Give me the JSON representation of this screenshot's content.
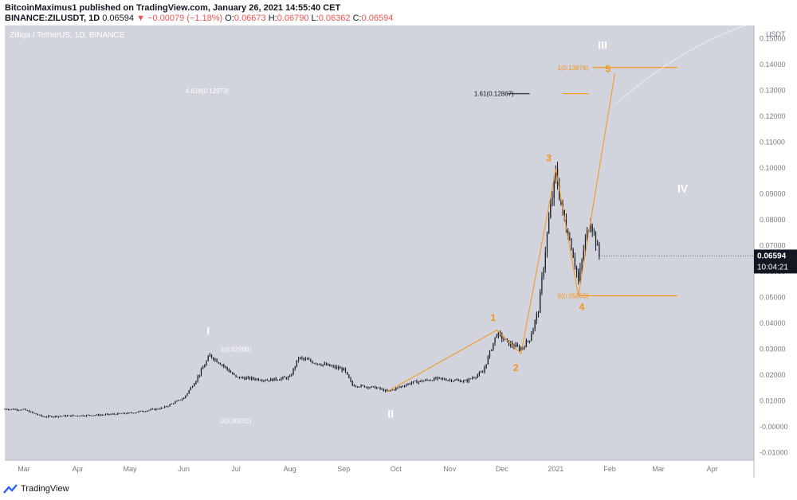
{
  "header": {
    "publisher_line": "BitcoinMaximus1 published on TradingView.com, January 26, 2021 14:55:40 CET",
    "symbol": "BINANCE:ZILUSDT, 1D",
    "last": "0.06594",
    "change": "−0.00079 (−1.18%)",
    "ohlc": [
      {
        "label": "O:",
        "value": "0.06673"
      },
      {
        "label": "H:",
        "value": "0.06790"
      },
      {
        "label": "L:",
        "value": "0.06362"
      },
      {
        "label": "C:",
        "value": "0.06594"
      }
    ]
  },
  "footer": {
    "brand": "TradingView"
  },
  "chart_data": {
    "type": "candlestick",
    "watermark": "Zilliqa / TetherUS, 1D, BINANCE",
    "currency_label": "USDT",
    "y_ticks": [
      "-0.01000",
      "-0.00000",
      "0.01000",
      "0.02000",
      "0.03000",
      "0.04000",
      "0.05000",
      "0.06000",
      "0.07000",
      "0.08000",
      "0.09000",
      "0.10000",
      "0.11000",
      "0.12000",
      "0.13000",
      "0.14000",
      "0.15000"
    ],
    "y_tick_values": [
      -0.01,
      0,
      0.01,
      0.02,
      0.03,
      0.04,
      0.05,
      0.06,
      0.07,
      0.08,
      0.09,
      0.1,
      0.11,
      0.12,
      0.13,
      0.14,
      0.15
    ],
    "ylim": [
      -0.013,
      0.155
    ],
    "x_start": "2020-02-19",
    "x_end": "2021-04-25",
    "x_ticks": [
      {
        "label": "Mar",
        "date": "2020-03-01"
      },
      {
        "label": "Apr",
        "date": "2020-04-01"
      },
      {
        "label": "May",
        "date": "2020-05-01"
      },
      {
        "label": "Jun",
        "date": "2020-06-01"
      },
      {
        "label": "Jul",
        "date": "2020-07-01"
      },
      {
        "label": "Aug",
        "date": "2020-08-01"
      },
      {
        "label": "Sep",
        "date": "2020-09-01"
      },
      {
        "label": "Oct",
        "date": "2020-10-01"
      },
      {
        "label": "Nov",
        "date": "2020-11-01"
      },
      {
        "label": "Dec",
        "date": "2020-12-01"
      },
      {
        "label": "2021",
        "date": "2021-01-01"
      },
      {
        "label": "Feb",
        "date": "2021-02-01"
      },
      {
        "label": "Mar",
        "date": "2021-03-01"
      },
      {
        "label": "Apr",
        "date": "2021-04-01"
      }
    ],
    "price_path": [
      {
        "date": "2020-02-19",
        "price": 0.0068
      },
      {
        "date": "2020-03-01",
        "price": 0.0065
      },
      {
        "date": "2020-03-12",
        "price": 0.0038
      },
      {
        "date": "2020-03-20",
        "price": 0.004
      },
      {
        "date": "2020-04-15",
        "price": 0.0045
      },
      {
        "date": "2020-05-01",
        "price": 0.0052
      },
      {
        "date": "2020-05-20",
        "price": 0.0072
      },
      {
        "date": "2020-06-01",
        "price": 0.011
      },
      {
        "date": "2020-06-08",
        "price": 0.018
      },
      {
        "date": "2020-06-16",
        "price": 0.0275
      },
      {
        "date": "2020-06-23",
        "price": 0.024
      },
      {
        "date": "2020-07-01",
        "price": 0.019
      },
      {
        "date": "2020-07-20",
        "price": 0.018
      },
      {
        "date": "2020-08-01",
        "price": 0.019
      },
      {
        "date": "2020-08-06",
        "price": 0.0265
      },
      {
        "date": "2020-08-20",
        "price": 0.024
      },
      {
        "date": "2020-09-01",
        "price": 0.022
      },
      {
        "date": "2020-09-06",
        "price": 0.016
      },
      {
        "date": "2020-09-20",
        "price": 0.015
      },
      {
        "date": "2020-09-26",
        "price": 0.0135
      },
      {
        "date": "2020-10-10",
        "price": 0.017
      },
      {
        "date": "2020-10-25",
        "price": 0.0185
      },
      {
        "date": "2020-11-10",
        "price": 0.0175
      },
      {
        "date": "2020-11-20",
        "price": 0.021
      },
      {
        "date": "2020-11-28",
        "price": 0.036
      },
      {
        "date": "2020-12-05",
        "price": 0.032
      },
      {
        "date": "2020-12-12",
        "price": 0.03
      },
      {
        "date": "2020-12-17",
        "price": 0.034
      },
      {
        "date": "2020-12-22",
        "price": 0.045
      },
      {
        "date": "2020-12-28",
        "price": 0.08
      },
      {
        "date": "2021-01-01",
        "price": 0.098
      },
      {
        "date": "2021-01-05",
        "price": 0.082
      },
      {
        "date": "2021-01-10",
        "price": 0.07
      },
      {
        "date": "2021-01-14",
        "price": 0.056
      },
      {
        "date": "2021-01-18",
        "price": 0.072
      },
      {
        "date": "2021-01-21",
        "price": 0.08
      },
      {
        "date": "2021-01-26",
        "price": 0.0659
      }
    ],
    "current_price": {
      "value": 0.06594,
      "label": "0.06594",
      "countdown": "10:04:21"
    },
    "annotations": [
      {
        "text": "4.618(0.12973)",
        "date": "2020-06-02",
        "price": 0.1297,
        "color": "#ffffff"
      },
      {
        "text": "1.61(0.12867)",
        "date": "2020-11-15",
        "price": 0.1287,
        "color": "#131722"
      },
      {
        "text": "1(0.02990)",
        "date": "2020-06-22",
        "price": 0.0299,
        "color": "#ffffff"
      },
      {
        "text": "0(0.00231)",
        "date": "2020-06-22",
        "price": 0.0023,
        "color": "#ffffff"
      },
      {
        "text": "1(0.13876)",
        "date": "2021-01-02",
        "price": 0.1387,
        "color": "#f7931a"
      },
      {
        "text": "0(0.05053)",
        "date": "2021-01-02",
        "price": 0.0505,
        "color": "#f7931a"
      }
    ],
    "wave_labels": [
      {
        "text": "I",
        "date": "2020-06-15",
        "price": 0.0355,
        "color": "#ffffff",
        "size": 14
      },
      {
        "text": "II",
        "date": "2020-09-28",
        "price": 0.0035,
        "color": "#ffffff",
        "size": 14
      },
      {
        "text": "III",
        "date": "2021-01-28",
        "price": 0.146,
        "color": "#ffffff",
        "size": 14
      },
      {
        "text": "IV",
        "date": "2021-03-15",
        "price": 0.0905,
        "color": "#ffffff",
        "size": 14
      },
      {
        "text": "1",
        "date": "2020-11-26",
        "price": 0.0408,
        "color": "#f7931a",
        "size": 12
      },
      {
        "text": "2",
        "date": "2020-12-09",
        "price": 0.0215,
        "color": "#f7931a",
        "size": 12
      },
      {
        "text": "3",
        "date": "2020-12-28",
        "price": 0.1025,
        "color": "#f7931a",
        "size": 12
      },
      {
        "text": "4",
        "date": "2021-01-16",
        "price": 0.045,
        "color": "#f7931a",
        "size": 12
      },
      {
        "text": "5",
        "date": "2021-01-31",
        "price": 0.137,
        "color": "#f7931a",
        "size": 12
      }
    ],
    "wave_path_orange": [
      {
        "date": "2020-09-26",
        "price": 0.0135
      },
      {
        "date": "2020-11-28",
        "price": 0.0372
      },
      {
        "date": "2020-12-12",
        "price": 0.0282
      },
      {
        "date": "2021-01-01",
        "price": 0.0995
      },
      {
        "date": "2021-01-14",
        "price": 0.0505
      },
      {
        "date": "2021-02-04",
        "price": 0.1365
      }
    ],
    "hlines": [
      {
        "price": 0.13876,
        "start": "2021-01-22",
        "end": "2021-03-12",
        "color": "#f7931a"
      },
      {
        "price": 0.05053,
        "start": "2021-01-14",
        "end": "2021-03-12",
        "color": "#f7931a"
      },
      {
        "price": 0.12867,
        "start": "2021-01-05",
        "end": "2021-01-20",
        "color": "#f7931a"
      }
    ],
    "curves": [
      {
        "date": "2021-04-20",
        "price": 0.155,
        "color": "#ffffff"
      }
    ]
  }
}
